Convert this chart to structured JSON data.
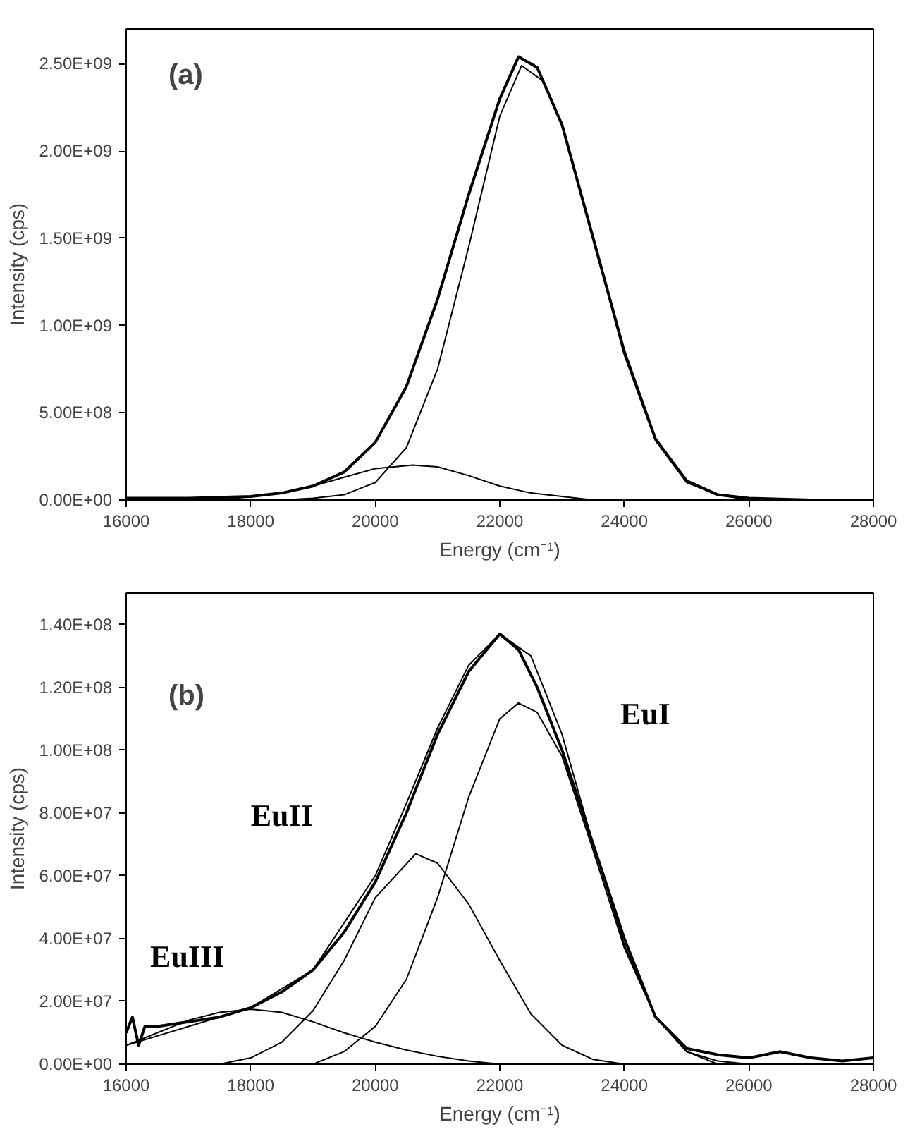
{
  "chart_data": [
    {
      "type": "line",
      "xlabel": "Energy (cm⁻¹)",
      "ylabel": "Intensity (cps)",
      "annotations": [
        "(a)"
      ],
      "grid": false,
      "marker": "none",
      "line_style": "solid",
      "xlim": [
        16000,
        28000
      ],
      "xticks": [
        16000,
        18000,
        20000,
        22000,
        24000,
        26000,
        28000
      ],
      "ylim": [
        0,
        2700000000.0
      ],
      "yticks": [
        {
          "value": 0,
          "label": "0.00E+00"
        },
        {
          "value": 500000000.0,
          "label": "5.00E+08"
        },
        {
          "value": 1000000000.0,
          "label": "1.00E+09"
        },
        {
          "value": 1500000000.0,
          "label": "1.50E+09"
        },
        {
          "value": 2000000000.0,
          "label": "2.00E+09"
        },
        {
          "value": 2500000000.0,
          "label": "2.50E+09"
        }
      ],
      "series": [
        {
          "color": "#000000",
          "x": [
            16000,
            17000,
            18000,
            18500,
            19000,
            19500,
            20000,
            20500,
            21000,
            21500,
            22000,
            22300,
            22600,
            23000,
            23500,
            24000,
            24500,
            25000,
            25500,
            26000,
            27000,
            28000
          ],
          "values": [
            10000000.0,
            10000000.0,
            20000000.0,
            40000000.0,
            80000000.0,
            160000000.0,
            330000000.0,
            650000000.0,
            1150000000.0,
            1750000000.0,
            2300000000.0,
            2540000000.0,
            2480000000.0,
            2150000000.0,
            1500000000.0,
            850000000.0,
            350000000.0,
            110000000.0,
            30000000.0,
            10000000.0,
            0,
            0
          ]
        },
        {
          "color": "#000000",
          "x": [
            18500,
            19000,
            19500,
            20000,
            20500,
            21000,
            21500,
            22000,
            22350,
            22700,
            23000,
            23500,
            24000,
            24500,
            25000,
            25500,
            26000,
            27000,
            28000
          ],
          "values": [
            0,
            10000000.0,
            30000000.0,
            100000000.0,
            300000000.0,
            750000000.0,
            1450000000.0,
            2200000000.0,
            2490000000.0,
            2400000000.0,
            2150000000.0,
            1500000000.0,
            830000000.0,
            340000000.0,
            100000000.0,
            30000000.0,
            0,
            0,
            0
          ]
        },
        {
          "color": "#000000",
          "x": [
            17500,
            18000,
            18500,
            19000,
            19500,
            20000,
            20600,
            21000,
            21500,
            22000,
            22500,
            23000,
            23500,
            24000
          ],
          "values": [
            0,
            20000000.0,
            40000000.0,
            80000000.0,
            130000000.0,
            180000000.0,
            200000000.0,
            190000000.0,
            140000000.0,
            80000000.0,
            40000000.0,
            20000000.0,
            0,
            0
          ]
        }
      ]
    },
    {
      "type": "line",
      "xlabel": "Energy (cm⁻¹)",
      "ylabel": "Intensity (cps)",
      "grid": false,
      "marker": "none",
      "line_style": "solid",
      "annotations": [
        "(b)"
      ],
      "xlim": [
        16000,
        28000
      ],
      "xticks": [
        16000,
        18000,
        20000,
        22000,
        24000,
        26000,
        28000
      ],
      "ylim": [
        0,
        150000000.0
      ],
      "yticks": [
        {
          "value": 0,
          "label": "0.00E+00"
        },
        {
          "value": 20000000.0,
          "label": "2.00E+07"
        },
        {
          "value": 40000000.0,
          "label": "4.00E+07"
        },
        {
          "value": 60000000.0,
          "label": "6.00E+07"
        },
        {
          "value": 80000000.0,
          "label": "8.00E+07"
        },
        {
          "value": 100000000.0,
          "label": "1.00E+08"
        },
        {
          "value": 120000000.0,
          "label": "1.20E+08"
        },
        {
          "value": 140000000.0,
          "label": "1.40E+08"
        }
      ],
      "series": [
        {
          "color": "#000000",
          "x": [
            16000,
            16100,
            16200,
            16300,
            16500,
            17000,
            17500,
            18000,
            18500,
            19000,
            19500,
            20000,
            20500,
            21000,
            21500,
            22000,
            22300,
            22600,
            23000,
            23500,
            24000,
            24500,
            25000,
            25500,
            26000,
            26500,
            27000,
            27500,
            28000
          ],
          "values": [
            10000000.0,
            15000000.0,
            6000000.0,
            12000000.0,
            12000000.0,
            13500000.0,
            15000000.0,
            18000000.0,
            23000000.0,
            30000000.0,
            42000000.0,
            58000000.0,
            80000000.0,
            105000000.0,
            125000000.0,
            137000000.0,
            132000000.0,
            120000000.0,
            100000000.0,
            70000000.0,
            40000000.0,
            15000000.0,
            5000000.0,
            3000000.0,
            2000000.0,
            4000000.0,
            2000000.0,
            1000000.0,
            2000000.0
          ]
        },
        {
          "color": "#000000",
          "x": [
            16000,
            17000,
            18000,
            19000,
            20000,
            20500,
            21000,
            21500,
            22000,
            22500,
            23000,
            23500,
            24000,
            24500,
            25000,
            25500,
            26000
          ],
          "values": [
            6000000.0,
            12000000.0,
            18000000.0,
            30000000.0,
            60000000.0,
            83000000.0,
            107000000.0,
            127000000.0,
            137000000.0,
            130000000.0,
            105000000.0,
            70000000.0,
            38000000.0,
            15000000.0,
            4000000.0,
            1000000.0,
            0
          ]
        },
        {
          "name": "EuI",
          "color": "#000000",
          "x": [
            19000,
            19500,
            20000,
            20500,
            21000,
            21500,
            22000,
            22300,
            22600,
            23000,
            23500,
            24000,
            24500,
            25000,
            25500
          ],
          "values": [
            0,
            4000000.0,
            12000000.0,
            27000000.0,
            53000000.0,
            85000000.0,
            110000000.0,
            115000000.0,
            112000000.0,
            98000000.0,
            68000000.0,
            37000000.0,
            15000000.0,
            4000000.0,
            0
          ]
        },
        {
          "name": "EuII",
          "color": "#000000",
          "x": [
            17500,
            18000,
            18500,
            19000,
            19500,
            20000,
            20650,
            21000,
            21500,
            22000,
            22500,
            23000,
            23500,
            24000
          ],
          "values": [
            0,
            2000000.0,
            7000000.0,
            17000000.0,
            33000000.0,
            53000000.0,
            67000000.0,
            64000000.0,
            51000000.0,
            33000000.0,
            16000000.0,
            6000000.0,
            1500000.0,
            0
          ]
        },
        {
          "name": "EuIII",
          "color": "#000000",
          "x": [
            16000,
            16500,
            17000,
            17500,
            18000,
            18500,
            19000,
            19500,
            20000,
            20500,
            21000,
            21500,
            22000
          ],
          "values": [
            6000000.0,
            10000000.0,
            14000000.0,
            16500000.0,
            17500000.0,
            16500000.0,
            13500000.0,
            10000000.0,
            7000000.0,
            4500000.0,
            2500000.0,
            1000000.0,
            0
          ]
        }
      ]
    }
  ]
}
